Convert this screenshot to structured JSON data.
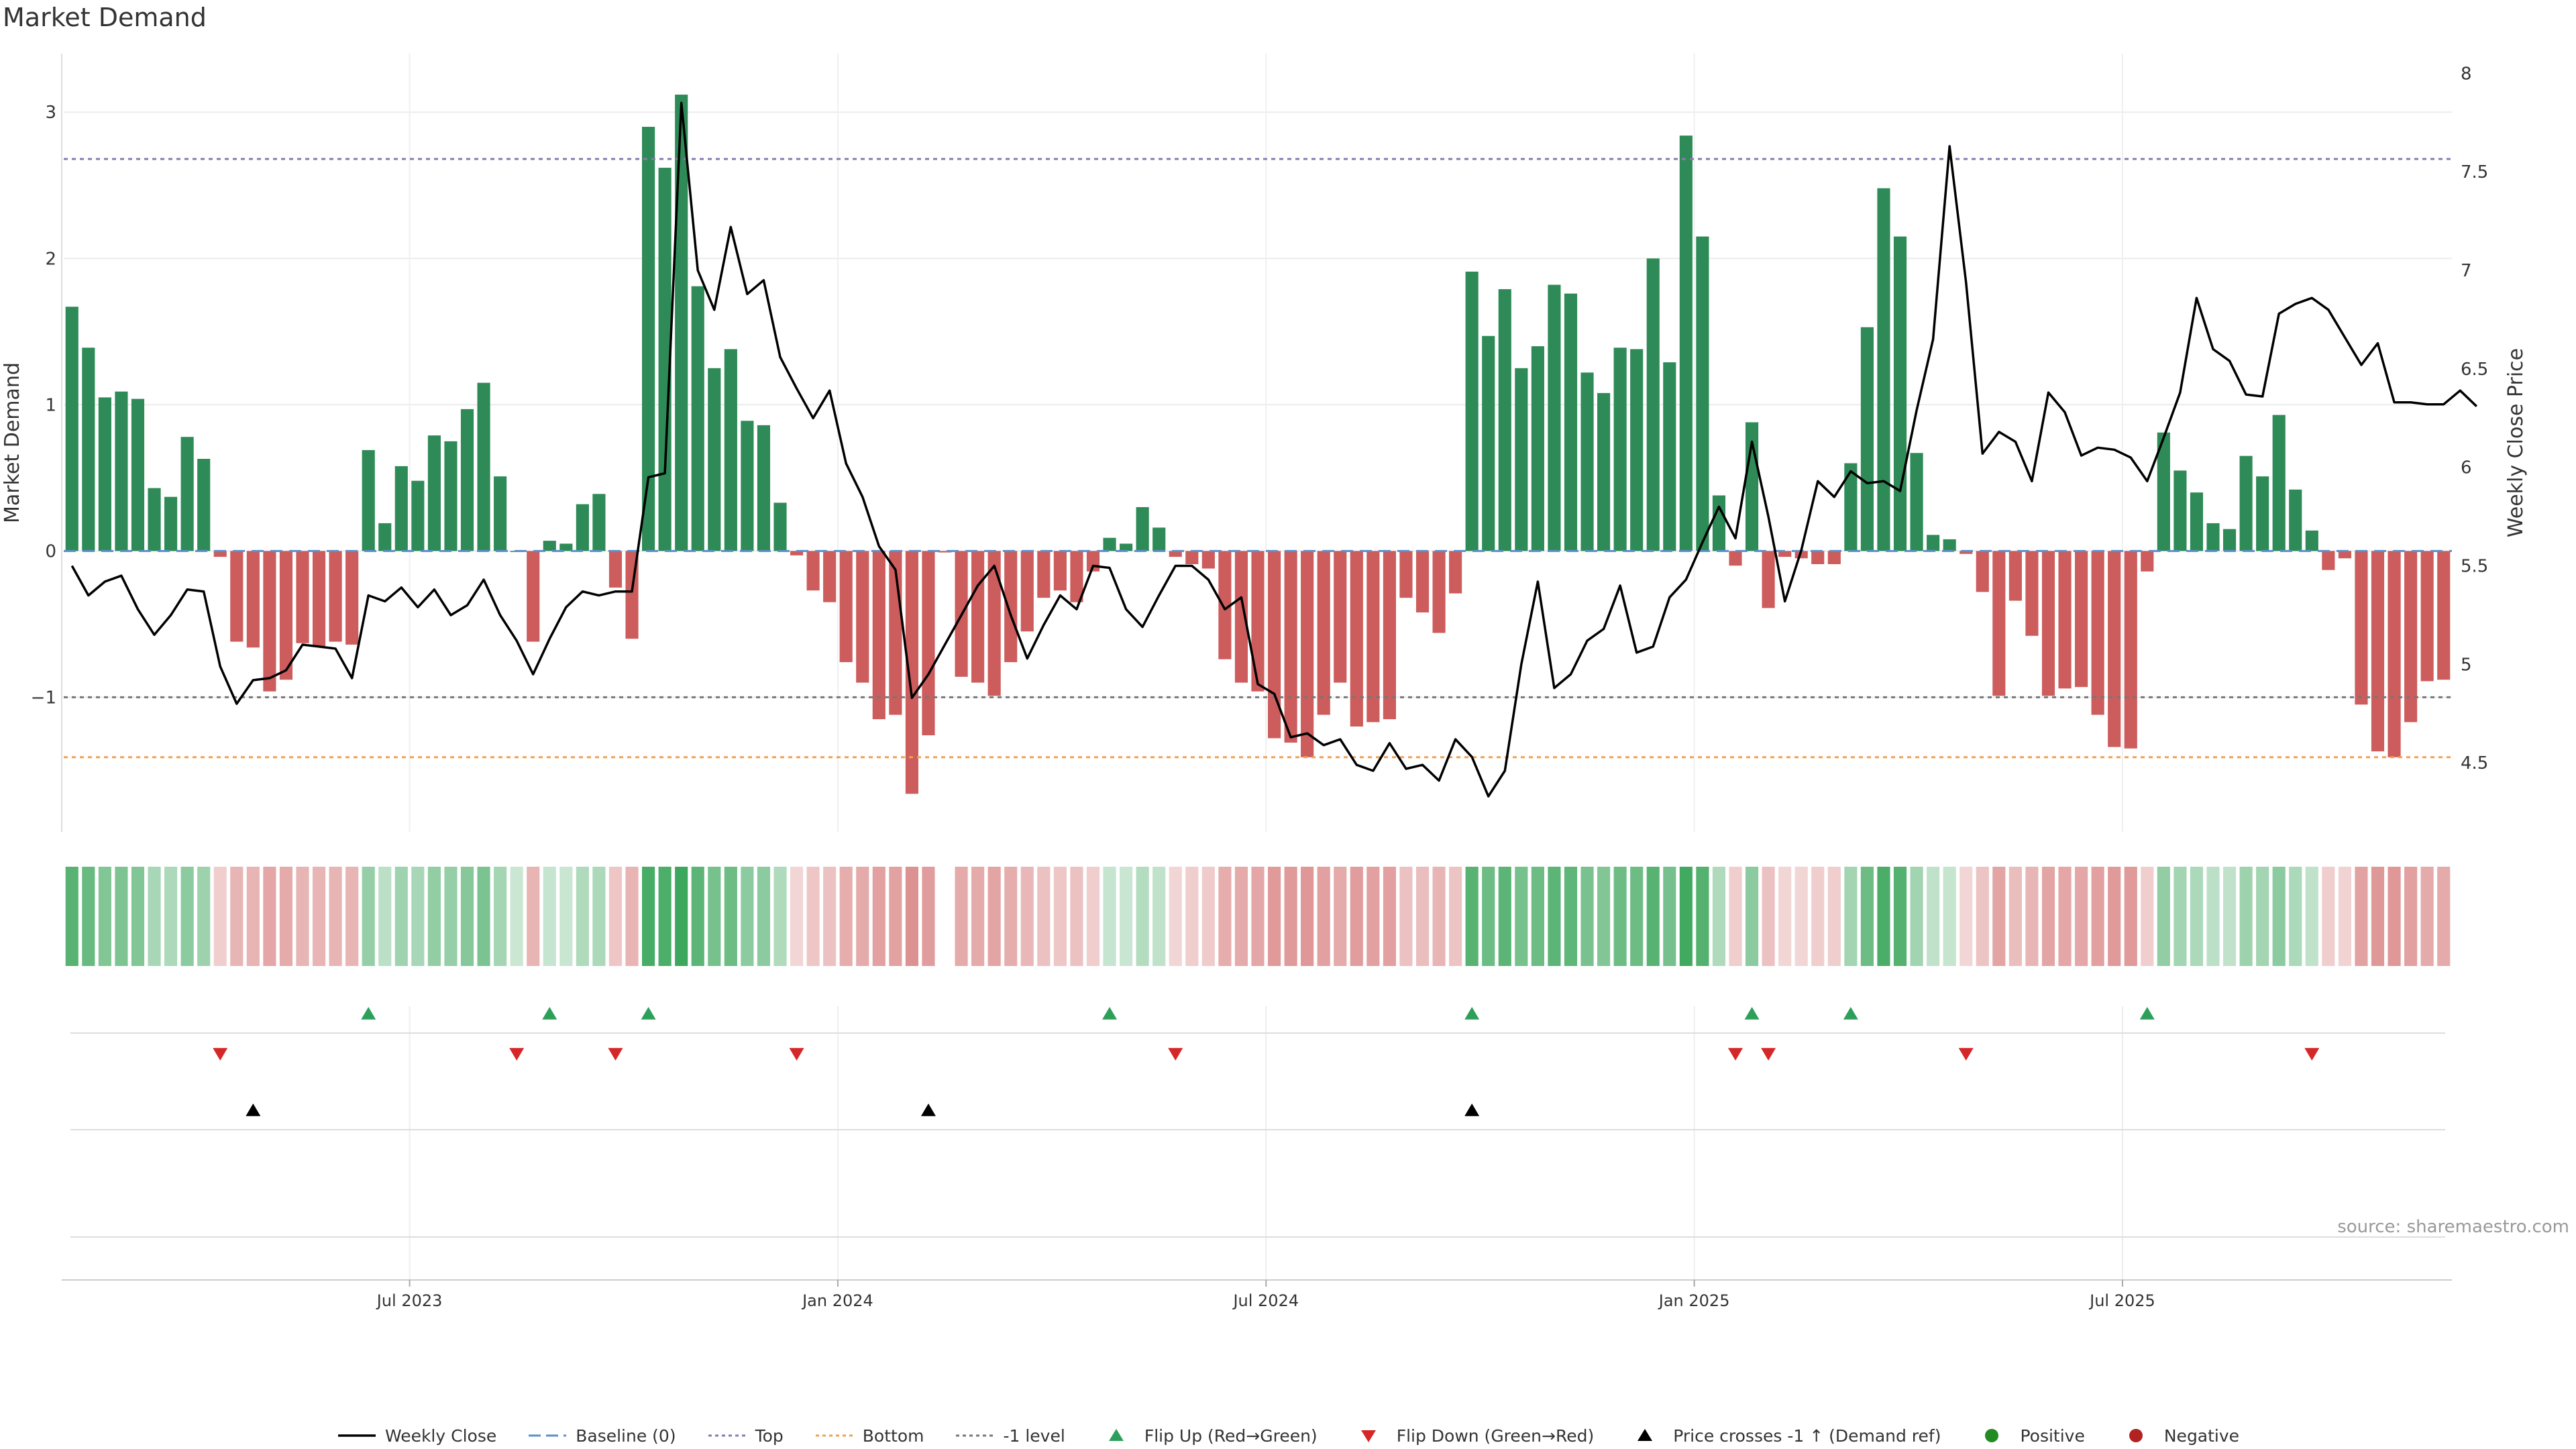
{
  "title": "Market Demand",
  "source": "source: sharemaestro.com",
  "colors": {
    "positive": "#2e8b57",
    "negative": "#cd5c5c",
    "close_line": "#000000",
    "baseline": "#5b8fc9",
    "top_line": "#8a7ab0",
    "bottom_line": "#f0a050",
    "neg1_line": "#777777",
    "flip_up": "#2ca05a",
    "flip_down": "#d62728",
    "cross": "#000000",
    "dot_positive": "#228b22",
    "dot_negative": "#b22222"
  },
  "legend": [
    {
      "key": "close",
      "label": "Weekly Close"
    },
    {
      "key": "baseline",
      "label": "Baseline (0)"
    },
    {
      "key": "top",
      "label": "Top"
    },
    {
      "key": "bottom",
      "label": "Bottom"
    },
    {
      "key": "neg1",
      "label": "-1 level"
    },
    {
      "key": "flip_up",
      "label": "Flip Up (Red→Green)"
    },
    {
      "key": "flip_down",
      "label": "Flip Down (Green→Red)"
    },
    {
      "key": "cross",
      "label": "Price crosses -1 ↑ (Demand ref)"
    },
    {
      "key": "pos",
      "label": "Positive"
    },
    {
      "key": "neg",
      "label": "Negative"
    }
  ],
  "chart_data": {
    "type": "bar",
    "y_left": {
      "label": "Market Demand",
      "ticks": [
        3,
        2,
        1,
        0,
        -1
      ],
      "range": [
        -1.92,
        3.4
      ]
    },
    "y_right": {
      "label": "Weekly Close Price",
      "ticks": [
        8,
        7.5,
        7,
        6.5,
        6,
        5.5,
        5,
        4.5
      ],
      "range": [
        4.15,
        8.1
      ]
    },
    "x_ticks": [
      {
        "label": "Jul 2023",
        "week": 21
      },
      {
        "label": "Jan 2024",
        "week": 47
      },
      {
        "label": "Jul 2024",
        "week": 73
      },
      {
        "label": "Jan 2025",
        "week": 99
      },
      {
        "label": "Jul 2025",
        "week": 125
      }
    ],
    "reference_lines": {
      "baseline": 0,
      "top": 2.68,
      "bottom": -1.41,
      "neg1": -1
    },
    "demand": [
      1.67,
      1.39,
      1.05,
      1.09,
      1.04,
      0.43,
      0.37,
      0.78,
      0.63,
      -0.04,
      -0.62,
      -0.66,
      -0.96,
      -0.88,
      -0.63,
      -0.65,
      -0.62,
      -0.64,
      0.69,
      0.19,
      0.58,
      0.48,
      0.79,
      0.75,
      0.97,
      1.15,
      0.51,
      0.0,
      -0.62,
      0.07,
      0.05,
      0.32,
      0.39,
      -0.25,
      -0.6,
      2.9,
      2.62,
      3.12,
      1.81,
      1.25,
      1.38,
      0.89,
      0.86,
      0.33,
      -0.03,
      -0.27,
      -0.35,
      -0.76,
      -0.9,
      -1.15,
      -1.12,
      -1.66,
      -1.26,
      -0.01,
      -0.86,
      -0.9,
      -0.99,
      -0.76,
      -0.55,
      -0.32,
      -0.27,
      -0.35,
      -0.14,
      0.09,
      0.05,
      0.3,
      0.16,
      -0.04,
      -0.09,
      -0.12,
      -0.74,
      -0.9,
      -0.96,
      -1.28,
      -1.31,
      -1.41,
      -1.12,
      -0.9,
      -1.2,
      -1.17,
      -1.15,
      -0.32,
      -0.42,
      -0.56,
      -0.29,
      1.91,
      1.47,
      1.79,
      1.25,
      1.4,
      1.82,
      1.76,
      1.22,
      1.08,
      1.39,
      1.38,
      2.0,
      1.29,
      2.84,
      2.15,
      0.38,
      -0.1,
      0.88,
      -0.39,
      -0.04,
      -0.05,
      -0.09,
      -0.09,
      0.6,
      1.53,
      2.48,
      2.15,
      0.67,
      0.11,
      0.08,
      -0.02,
      -0.28,
      -0.99,
      -0.34,
      -0.58,
      -0.99,
      -0.94,
      -0.93,
      -1.12,
      -1.34,
      -1.35,
      -0.14,
      0.81,
      0.55,
      0.4,
      0.19,
      0.15,
      0.65,
      0.51,
      0.93,
      0.42,
      0.14,
      -0.13,
      -0.05,
      -1.05,
      -1.37,
      -1.41,
      -1.17,
      -0.89,
      -0.88
    ],
    "close": [
      5.5,
      5.35,
      5.42,
      5.45,
      5.28,
      5.15,
      5.25,
      5.38,
      5.37,
      4.99,
      4.8,
      4.92,
      4.93,
      4.97,
      5.1,
      5.09,
      5.08,
      4.93,
      5.35,
      5.32,
      5.39,
      5.29,
      5.38,
      5.25,
      5.3,
      5.43,
      5.25,
      5.12,
      4.95,
      5.13,
      5.29,
      5.37,
      5.35,
      5.37,
      5.37,
      5.95,
      5.97,
      7.85,
      7.0,
      6.8,
      7.22,
      6.88,
      6.95,
      6.56,
      6.4,
      6.25,
      6.39,
      6.02,
      5.85,
      5.6,
      5.48,
      4.83,
      4.95,
      5.1,
      5.25,
      5.4,
      5.5,
      5.25,
      5.03,
      5.2,
      5.35,
      5.28,
      5.5,
      5.49,
      5.28,
      5.19,
      5.35,
      5.5,
      5.5,
      5.43,
      5.28,
      5.34,
      4.9,
      4.85,
      4.63,
      4.65,
      4.59,
      4.62,
      4.49,
      4.46,
      4.6,
      4.47,
      4.49,
      4.41,
      4.62,
      4.53,
      4.33,
      4.46,
      5.0,
      5.42,
      4.88,
      4.95,
      5.12,
      5.18,
      5.4,
      5.06,
      5.09,
      5.34,
      5.43,
      5.62,
      5.8,
      5.64,
      6.13,
      5.75,
      5.32,
      5.58,
      5.93,
      5.85,
      5.98,
      5.92,
      5.93,
      5.88,
      6.29,
      6.65,
      7.63,
      6.94,
      6.07,
      6.18,
      6.13,
      5.93,
      6.38,
      6.28,
      6.06,
      6.1,
      6.09,
      6.05,
      5.93,
      6.15,
      6.38,
      6.86,
      6.6,
      6.54,
      6.37,
      6.36,
      6.78,
      6.83,
      6.86,
      6.8,
      6.66,
      6.52,
      6.63,
      6.33,
      6.33,
      6.32,
      6.32,
      6.39,
      6.31
    ],
    "strip_levels": [
      0.8,
      0.72,
      0.6,
      0.62,
      0.6,
      0.42,
      0.4,
      0.55,
      0.47,
      -0.3,
      -0.45,
      -0.46,
      -0.55,
      -0.52,
      -0.45,
      -0.46,
      -0.45,
      -0.45,
      0.5,
      0.32,
      0.46,
      0.42,
      0.52,
      0.5,
      0.58,
      0.63,
      0.43,
      0.25,
      -0.45,
      0.27,
      0.26,
      0.38,
      0.4,
      -0.35,
      -0.46,
      0.88,
      0.85,
      0.92,
      0.78,
      0.65,
      0.7,
      0.55,
      0.55,
      0.38,
      -0.25,
      -0.35,
      -0.38,
      -0.5,
      -0.52,
      -0.58,
      -0.57,
      -0.67,
      -0.6,
      0.0,
      -0.52,
      -0.52,
      -0.56,
      -0.5,
      -0.44,
      -0.38,
      -0.35,
      -0.38,
      -0.3,
      0.27,
      0.26,
      0.36,
      0.3,
      -0.25,
      -0.3,
      -0.32,
      -0.5,
      -0.52,
      -0.55,
      -0.62,
      -0.62,
      -0.64,
      -0.58,
      -0.52,
      -0.6,
      -0.58,
      -0.58,
      -0.38,
      -0.4,
      -0.45,
      -0.36,
      0.8,
      0.7,
      0.78,
      0.65,
      0.7,
      0.78,
      0.77,
      0.64,
      0.6,
      0.7,
      0.7,
      0.8,
      0.66,
      0.9,
      0.82,
      0.38,
      -0.3,
      0.55,
      -0.38,
      -0.25,
      -0.26,
      -0.3,
      -0.3,
      0.44,
      0.7,
      0.86,
      0.82,
      0.45,
      0.3,
      0.28,
      -0.25,
      -0.36,
      -0.56,
      -0.4,
      -0.45,
      -0.56,
      -0.55,
      -0.55,
      -0.58,
      -0.62,
      -0.62,
      -0.3,
      0.52,
      0.44,
      0.4,
      0.32,
      0.3,
      0.47,
      0.44,
      0.55,
      0.4,
      0.3,
      -0.3,
      -0.27,
      -0.57,
      -0.63,
      -0.64,
      -0.58,
      -0.52,
      -0.52
    ],
    "flip_up_weeks": [
      18,
      29,
      35,
      63,
      85,
      102,
      108,
      126
    ],
    "flip_down_weeks": [
      9,
      27,
      33,
      44,
      67,
      101,
      103,
      115,
      136
    ],
    "cross_up_weeks": [
      11,
      52,
      85
    ],
    "positive_dot_weeks": [],
    "negative_dot_weeks": []
  }
}
